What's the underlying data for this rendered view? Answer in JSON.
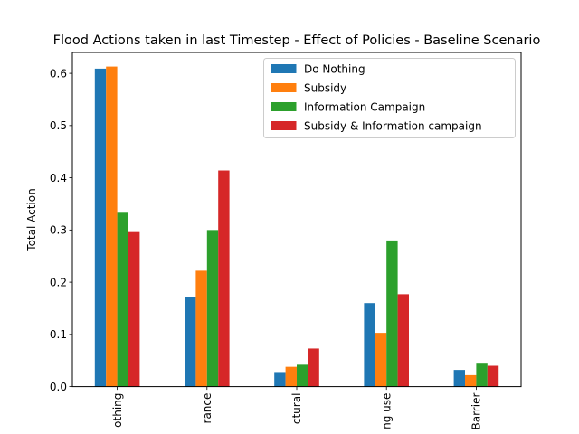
{
  "chart_data": {
    "type": "bar",
    "title": "Flood Actions taken in last Timestep - Effect of Policies - Baseline Scenario",
    "xlabel": "",
    "ylabel": "Total Action",
    "ylim": [
      0,
      0.64
    ],
    "yticks": [
      "0.0",
      "0.1",
      "0.2",
      "0.3",
      "0.4",
      "0.5",
      "0.6"
    ],
    "categories": [
      "Do Nothing",
      "Insurance",
      "Structural",
      "Change building use",
      "Barrier"
    ],
    "visible_category_labels": [
      "othing",
      "rance",
      "ctural",
      "ng use",
      "Barrier"
    ],
    "legend_position": "upper right",
    "grid": false,
    "series": [
      {
        "name": "Do Nothing",
        "color": "#1f77b4",
        "values": [
          0.609,
          0.172,
          0.028,
          0.16,
          0.032
        ]
      },
      {
        "name": "Subsidy",
        "color": "#ff7f0e",
        "values": [
          0.613,
          0.222,
          0.038,
          0.103,
          0.022
        ]
      },
      {
        "name": "Information Campaign",
        "color": "#2ca02c",
        "values": [
          0.333,
          0.3,
          0.042,
          0.28,
          0.044
        ]
      },
      {
        "name": "Subsidy & Information campaign",
        "color": "#d62728",
        "values": [
          0.296,
          0.414,
          0.073,
          0.177,
          0.04
        ]
      }
    ]
  }
}
